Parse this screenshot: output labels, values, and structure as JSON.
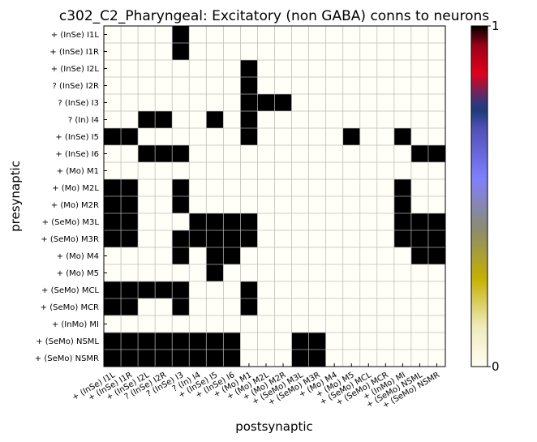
{
  "chart_data": {
    "type": "heatmap",
    "title": "c302_C2_Pharyngeal: Excitatory (non GABA) conns to neurons",
    "xlabel": "postsynaptic",
    "ylabel": "presynaptic",
    "x_labels": [
      "+ (InSe) I1L",
      "+ (InSe) I1R",
      "+ (InSe) I2L",
      "? (InSe) I2R",
      "? (InSe) I3",
      "? (In) I4",
      "+ (InSe) I5",
      "+ (InSe) I6",
      "+ (Mo) M1",
      "+ (Mo) M2L",
      "+ (Mo) M2R",
      "+ (SeMo) M3L",
      "+ (SeMo) M3R",
      "+ (Mo) M4",
      "+ (Mo) M5",
      "+ (SeMo) MCL",
      "+ (SeMo) MCR",
      "+ (InMo) MI",
      "+ (SeMo) NSML",
      "+ (SeMo) NSMR"
    ],
    "y_labels": [
      "+ (InSe) I1L",
      "+ (InSe) I1R",
      "+ (InSe) I2L",
      "? (InSe) I2R",
      "? (InSe) I3",
      "? (In) I4",
      "+ (InSe) I5",
      "+ (InSe) I6",
      "+ (Mo) M1",
      "+ (Mo) M2L",
      "+ (Mo) M2R",
      "+ (SeMo) M3L",
      "+ (SeMo) M3R",
      "+ (Mo) M4",
      "+ (Mo) M5",
      "+ (SeMo) MCL",
      "+ (SeMo) MCR",
      "+ (InMo) MI",
      "+ (SeMo) NSML",
      "+ (SeMo) NSMR"
    ],
    "matrix": [
      [
        0,
        0,
        0,
        0,
        1,
        0,
        0,
        0,
        0,
        0,
        0,
        0,
        0,
        0,
        0,
        0,
        0,
        0,
        0,
        0
      ],
      [
        0,
        0,
        0,
        0,
        1,
        0,
        0,
        0,
        0,
        0,
        0,
        0,
        0,
        0,
        0,
        0,
        0,
        0,
        0,
        0
      ],
      [
        0,
        0,
        0,
        0,
        0,
        0,
        0,
        0,
        1,
        0,
        0,
        0,
        0,
        0,
        0,
        0,
        0,
        0,
        0,
        0
      ],
      [
        0,
        0,
        0,
        0,
        0,
        0,
        0,
        0,
        1,
        0,
        0,
        0,
        0,
        0,
        0,
        0,
        0,
        0,
        0,
        0
      ],
      [
        0,
        0,
        0,
        0,
        0,
        0,
        0,
        0,
        1,
        1,
        1,
        0,
        0,
        0,
        0,
        0,
        0,
        0,
        0,
        0
      ],
      [
        0,
        0,
        1,
        1,
        0,
        0,
        1,
        0,
        1,
        0,
        0,
        0,
        0,
        0,
        0,
        0,
        0,
        0,
        0,
        0
      ],
      [
        1,
        1,
        0,
        0,
        0,
        0,
        0,
        0,
        1,
        0,
        0,
        0,
        0,
        0,
        1,
        0,
        0,
        1,
        0,
        0
      ],
      [
        0,
        0,
        1,
        1,
        1,
        0,
        0,
        0,
        0,
        0,
        0,
        0,
        0,
        0,
        0,
        0,
        0,
        0,
        1,
        1
      ],
      [
        0,
        0,
        0,
        0,
        0,
        0,
        0,
        0,
        0,
        0,
        0,
        0,
        0,
        0,
        0,
        0,
        0,
        0,
        0,
        0
      ],
      [
        1,
        1,
        0,
        0,
        1,
        0,
        0,
        0,
        0,
        0,
        0,
        0,
        0,
        0,
        0,
        0,
        0,
        1,
        0,
        0
      ],
      [
        1,
        1,
        0,
        0,
        1,
        0,
        0,
        0,
        0,
        0,
        0,
        0,
        0,
        0,
        0,
        0,
        0,
        1,
        0,
        0
      ],
      [
        1,
        1,
        0,
        0,
        0,
        1,
        1,
        1,
        1,
        0,
        0,
        0,
        0,
        0,
        0,
        0,
        0,
        1,
        1,
        1
      ],
      [
        1,
        1,
        0,
        0,
        1,
        1,
        1,
        1,
        1,
        0,
        0,
        0,
        0,
        0,
        0,
        0,
        0,
        1,
        1,
        1
      ],
      [
        0,
        0,
        0,
        0,
        1,
        0,
        1,
        1,
        0,
        0,
        0,
        0,
        0,
        0,
        0,
        0,
        0,
        0,
        1,
        1
      ],
      [
        0,
        0,
        0,
        0,
        0,
        0,
        1,
        0,
        0,
        0,
        0,
        0,
        0,
        0,
        0,
        0,
        0,
        0,
        0,
        0
      ],
      [
        1,
        1,
        1,
        1,
        1,
        0,
        0,
        0,
        1,
        0,
        0,
        0,
        0,
        0,
        0,
        0,
        0,
        0,
        0,
        0
      ],
      [
        1,
        1,
        0,
        0,
        1,
        0,
        0,
        0,
        1,
        0,
        0,
        0,
        0,
        0,
        0,
        0,
        0,
        0,
        0,
        0
      ],
      [
        0,
        0,
        0,
        0,
        0,
        0,
        0,
        0,
        0,
        0,
        0,
        0,
        0,
        0,
        0,
        0,
        0,
        0,
        0,
        0
      ],
      [
        1,
        1,
        1,
        1,
        1,
        1,
        1,
        1,
        0,
        0,
        0,
        1,
        1,
        0,
        0,
        0,
        0,
        0,
        0,
        0
      ],
      [
        1,
        1,
        1,
        1,
        1,
        1,
        1,
        1,
        0,
        0,
        0,
        1,
        1,
        0,
        0,
        0,
        0,
        0,
        0,
        0
      ]
    ],
    "value_range": [
      0,
      1
    ],
    "colorbar": {
      "tick_labels": [
        "0",
        "1"
      ],
      "colors": [
        "#fffef0",
        "#c8b400",
        "#7a7aff",
        "#1c3c7c",
        "#e0001a",
        "#000000"
      ]
    },
    "grid": true,
    "legend": "colorbar-right"
  }
}
